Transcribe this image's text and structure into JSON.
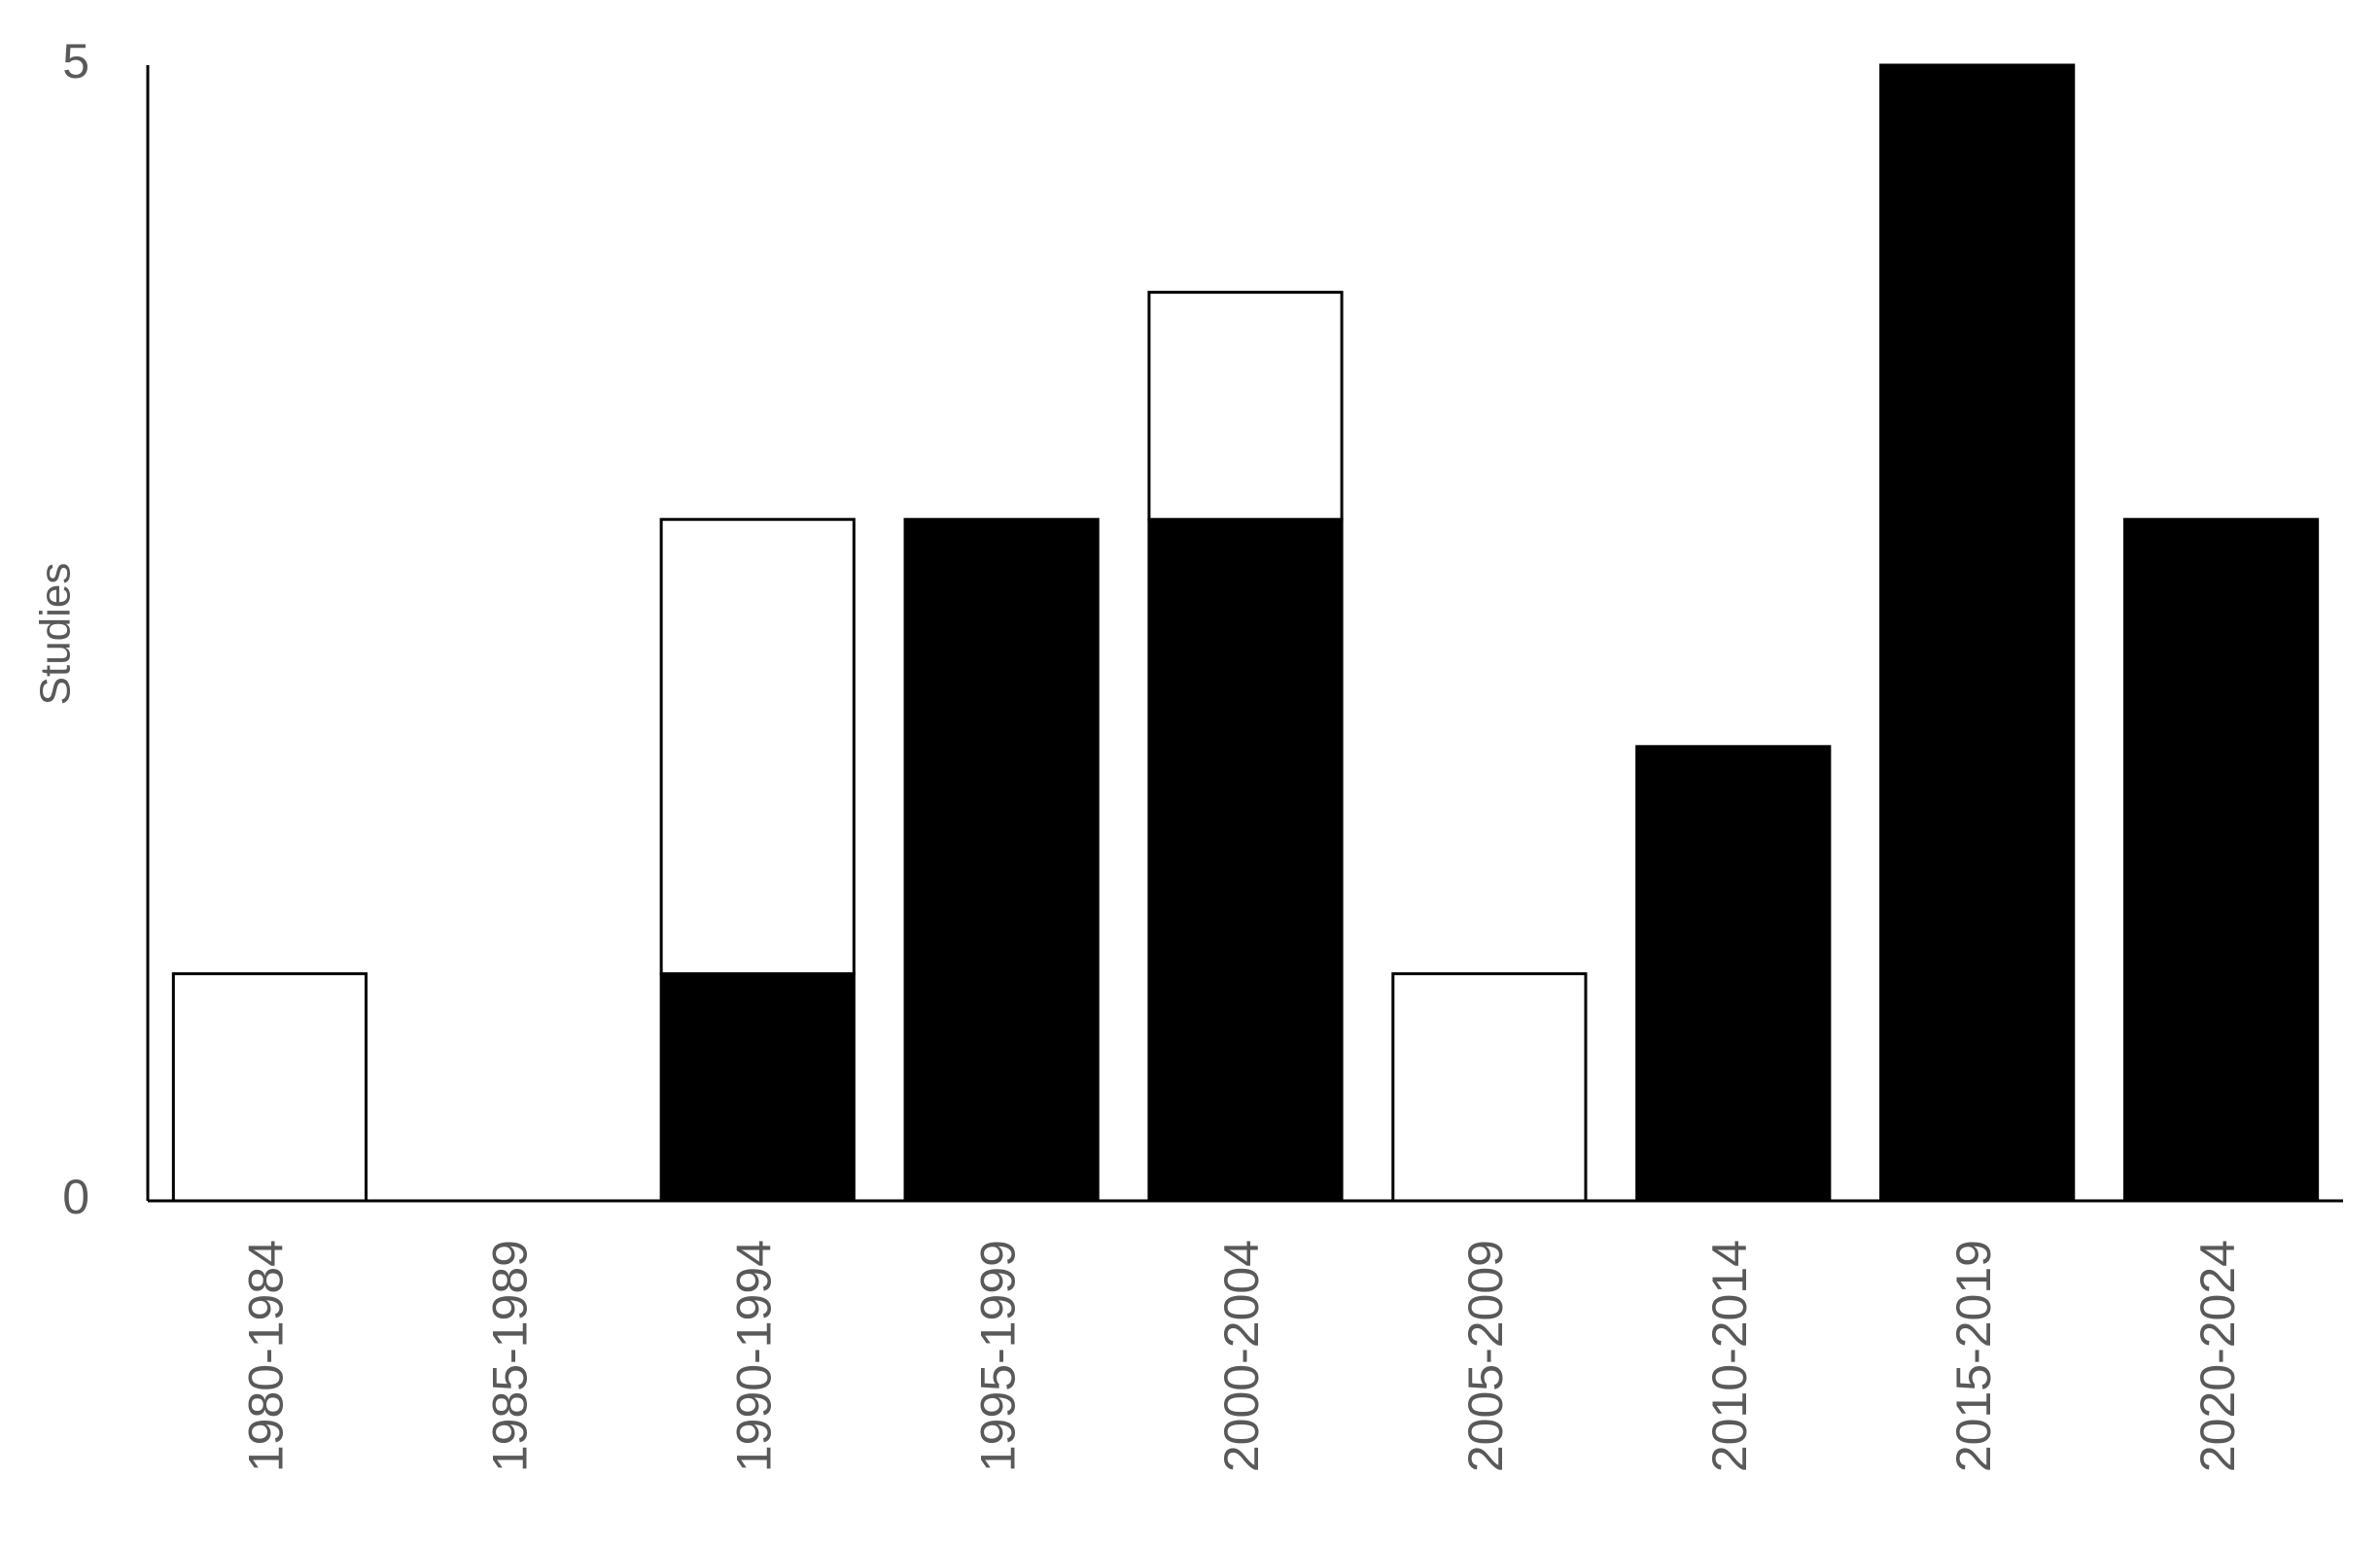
{
  "chart_data": {
    "type": "stacked_bar",
    "y_label": "Studies",
    "categories": [
      "1980-1984",
      "1985-1989",
      "1990-1994",
      "1995-1999",
      "2000-2004",
      "2005-2009",
      "2010-2014",
      "2015-2019",
      "2020-2024"
    ],
    "series": [
      {
        "color": "#000000",
        "values": [
          0,
          0,
          1,
          3,
          3,
          0,
          2,
          5,
          3
        ]
      },
      {
        "color": "#ffffff",
        "values": [
          1,
          0,
          2,
          0,
          1,
          1,
          0,
          0,
          0
        ]
      }
    ],
    "edge_color": "#000000",
    "ylim": [
      0,
      5
    ],
    "yticks": [
      0,
      5
    ],
    "grid": false
  }
}
